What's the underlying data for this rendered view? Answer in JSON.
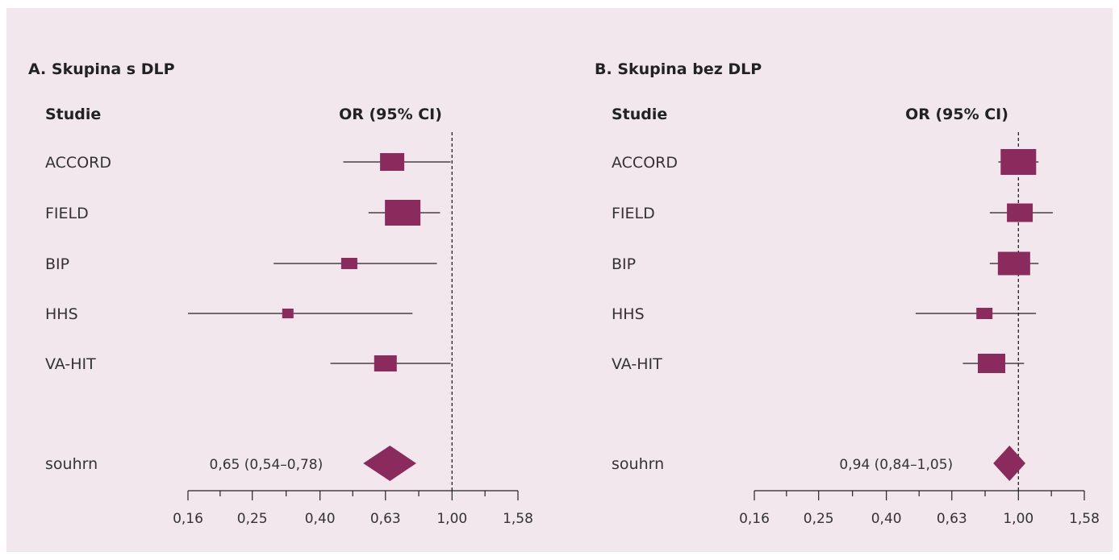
{
  "colors": {
    "background": "#f3e7ee",
    "marker": "#8b2a5c",
    "line": "#222222"
  },
  "chart_data": [
    {
      "type": "forest",
      "title": "A. Skupina s DLP",
      "study_header": "Studie",
      "effect_header": "OR (95% CI)",
      "x_scale": "log",
      "xlim": [
        0.16,
        1.58
      ],
      "reference_line": 1.0,
      "ticks": [
        {
          "value": 0.16,
          "label": "0,16"
        },
        {
          "value": 0.25,
          "label": "0,25"
        },
        {
          "value": 0.4,
          "label": "0,40"
        },
        {
          "value": 0.63,
          "label": "0,63"
        },
        {
          "value": 1.0,
          "label": "1,00"
        },
        {
          "value": 1.58,
          "label": "1,58"
        }
      ],
      "studies": [
        {
          "name": "ACCORD",
          "or": 0.66,
          "lo": 0.47,
          "hi": 0.99,
          "box": 30
        },
        {
          "name": "FIELD",
          "or": 0.71,
          "lo": 0.56,
          "hi": 0.92,
          "box": 44
        },
        {
          "name": "BIP",
          "or": 0.49,
          "lo": 0.29,
          "hi": 0.9,
          "box": 20
        },
        {
          "name": "HHS",
          "or": 0.32,
          "lo": 0.16,
          "hi": 0.76,
          "box": 14
        },
        {
          "name": "VA-HIT",
          "or": 0.63,
          "lo": 0.43,
          "hi": 0.99,
          "box": 28
        }
      ],
      "summary": {
        "name": "souhrn",
        "or": 0.65,
        "lo": 0.54,
        "hi": 0.78,
        "label": "0,65 (0,54–0,78)"
      }
    },
    {
      "type": "forest",
      "title": "B. Skupina bez DLP",
      "study_header": "Studie",
      "effect_header": "OR (95% CI)",
      "x_scale": "log",
      "xlim": [
        0.16,
        1.58
      ],
      "reference_line": 1.0,
      "ticks": [
        {
          "value": 0.16,
          "label": "0,16"
        },
        {
          "value": 0.25,
          "label": "0,25"
        },
        {
          "value": 0.4,
          "label": "0,40"
        },
        {
          "value": 0.63,
          "label": "0,63"
        },
        {
          "value": 1.0,
          "label": "1,00"
        },
        {
          "value": 1.58,
          "label": "1,58"
        }
      ],
      "studies": [
        {
          "name": "ACCORD",
          "or": 1.0,
          "lo": 0.87,
          "hi": 1.15,
          "box": 44
        },
        {
          "name": "FIELD",
          "or": 1.01,
          "lo": 0.82,
          "hi": 1.27,
          "box": 32
        },
        {
          "name": "BIP",
          "or": 0.97,
          "lo": 0.82,
          "hi": 1.15,
          "box": 40
        },
        {
          "name": "HHS",
          "or": 0.79,
          "lo": 0.49,
          "hi": 1.13,
          "box": 20
        },
        {
          "name": "VA-HIT",
          "or": 0.83,
          "lo": 0.68,
          "hi": 1.04,
          "box": 34
        }
      ],
      "summary": {
        "name": "souhrn",
        "or": 0.94,
        "lo": 0.84,
        "hi": 1.05,
        "label": "0,94 (0,84–1,05)"
      }
    }
  ]
}
